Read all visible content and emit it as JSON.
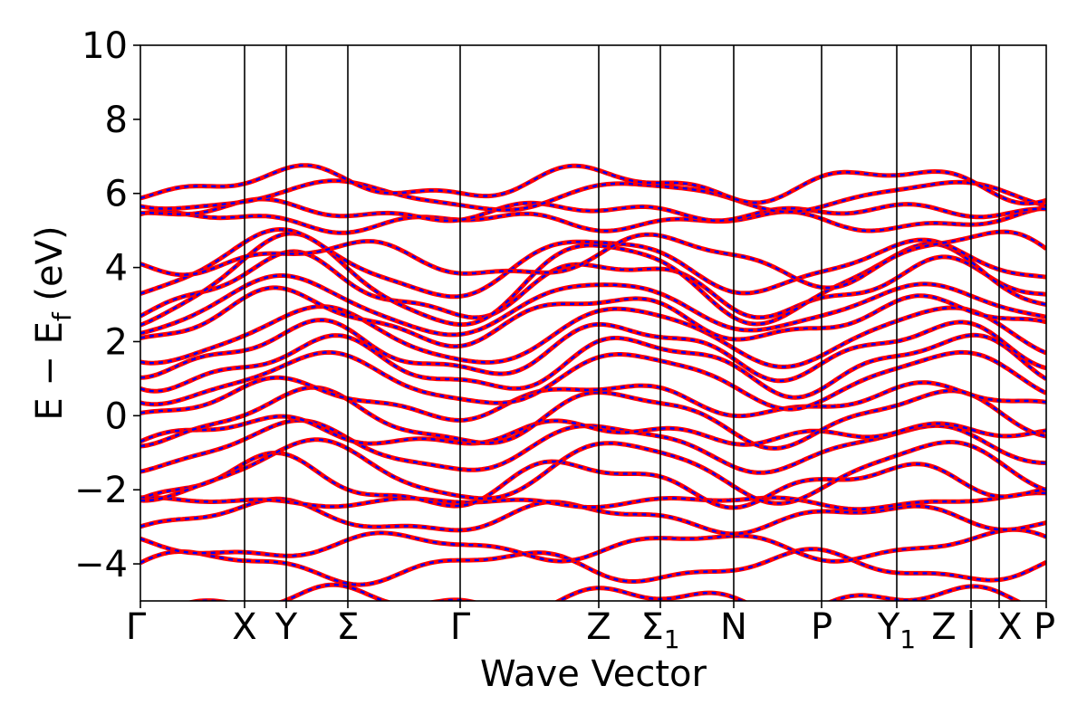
{
  "chart_data": {
    "type": "line",
    "xlabel": "Wave Vector",
    "ylabel": "E − E",
    "ylabel_sub": "f",
    "ylabel_unit": "(eV)",
    "ylim": [
      -5,
      10
    ],
    "yticks": [
      -4,
      -2,
      0,
      2,
      4,
      6,
      8,
      10
    ],
    "ytick_labels": [
      "−4",
      "−2",
      "0",
      "2",
      "4",
      "6",
      "8",
      "10"
    ],
    "xlim": [
      0,
      1
    ],
    "high_symmetry_points": [
      {
        "label": "Γ",
        "x": 0.0
      },
      {
        "label": "X",
        "x": 0.115
      },
      {
        "label": "Y",
        "x": 0.161
      },
      {
        "label": "Σ",
        "x": 0.229
      },
      {
        "label": "Γ",
        "x": 0.353
      },
      {
        "label": "Z",
        "x": 0.506
      },
      {
        "label": "Σ",
        "sub": "1",
        "x": 0.574
      },
      {
        "label": "N",
        "x": 0.655
      },
      {
        "label": "P",
        "x": 0.752
      },
      {
        "label": "Y",
        "sub": "1",
        "x": 0.835
      },
      {
        "label": "Z",
        "x": 0.917
      },
      {
        "label": "X",
        "x": 0.948
      },
      {
        "label": "P",
        "x": 1.0
      }
    ],
    "path_break": {
      "label": "|",
      "x": 0.917
    },
    "grid": false,
    "series": [
      {
        "style": "solid",
        "color": "#ff0000"
      },
      {
        "style": "dashed",
        "color": "#0000ff"
      }
    ],
    "band_energies_at_gamma": [
      -5.0,
      -4.1,
      -3.6,
      -2.9,
      -2.5,
      -2.2,
      -1.9,
      -1.2,
      -0.9,
      -0.45,
      0.0,
      0.6,
      1.0,
      1.4,
      1.8,
      2.0,
      2.3,
      2.6,
      2.8,
      3.4,
      3.65,
      5.0,
      5.35,
      5.9,
      6.35
    ],
    "band_energies_at_x": [
      -4.9,
      -4.0,
      -3.3,
      -2.3,
      -1.8,
      -0.7,
      -0.3,
      0.15,
      0.8,
      1.1,
      1.7,
      2.1,
      2.5,
      2.9,
      3.2,
      4.5,
      4.85,
      6.0
    ]
  }
}
